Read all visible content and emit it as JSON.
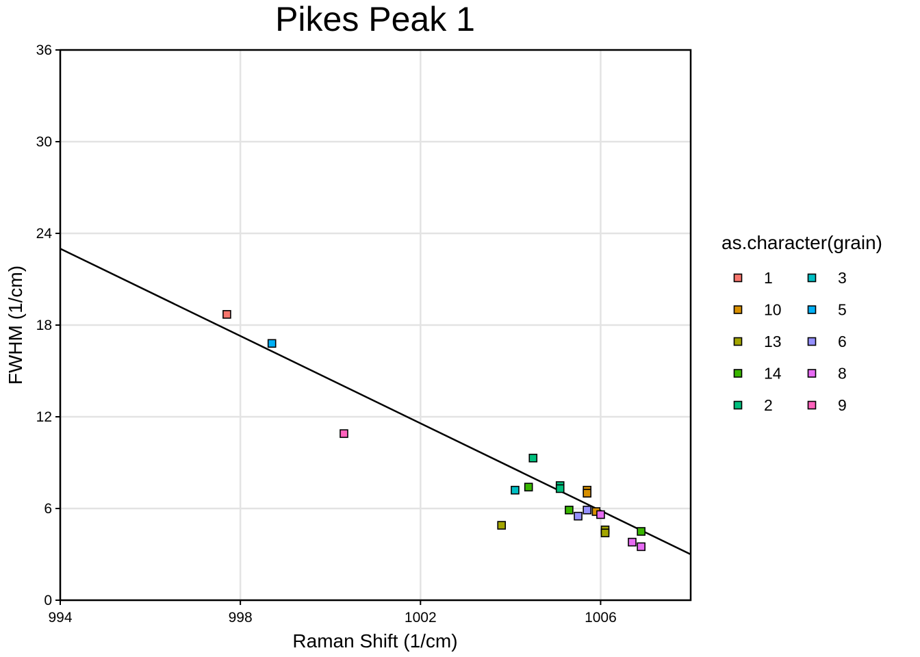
{
  "chart_data": {
    "type": "scatter",
    "title": "Pikes Peak 1",
    "xlabel": "Raman Shift (1/cm)",
    "ylabel": "FWHM (1/cm)",
    "xlim": [
      994,
      1008
    ],
    "ylim": [
      0,
      36
    ],
    "xticks": [
      994,
      998,
      1002,
      1006
    ],
    "yticks": [
      0,
      6,
      12,
      18,
      24,
      30,
      36
    ],
    "grid": true,
    "legend_title": "as.character(grain)",
    "legend_position": "right",
    "series": [
      {
        "name": "1",
        "color": "#F8766D",
        "points": [
          [
            997.7,
            18.7
          ]
        ]
      },
      {
        "name": "10",
        "color": "#D89000",
        "points": [
          [
            1005.7,
            7.2
          ],
          [
            1005.7,
            7.0
          ],
          [
            1005.9,
            5.8
          ]
        ]
      },
      {
        "name": "13",
        "color": "#A3A500",
        "points": [
          [
            1003.8,
            4.9
          ],
          [
            1006.1,
            4.6
          ],
          [
            1006.1,
            4.4
          ]
        ]
      },
      {
        "name": "14",
        "color": "#39B600",
        "points": [
          [
            1004.4,
            7.4
          ],
          [
            1005.3,
            5.9
          ],
          [
            1006.9,
            4.5
          ]
        ]
      },
      {
        "name": "2",
        "color": "#00BF7D",
        "points": [
          [
            1004.5,
            9.3
          ],
          [
            1005.1,
            7.5
          ],
          [
            1005.1,
            7.3
          ]
        ]
      },
      {
        "name": "3",
        "color": "#00BFC4",
        "points": [
          [
            1004.1,
            7.2
          ]
        ]
      },
      {
        "name": "5",
        "color": "#00B0F6",
        "points": [
          [
            998.7,
            16.8
          ]
        ]
      },
      {
        "name": "6",
        "color": "#9590FF",
        "points": [
          [
            1005.5,
            5.5
          ],
          [
            1005.7,
            5.9
          ]
        ]
      },
      {
        "name": "8",
        "color": "#E76BF3",
        "points": [
          [
            1006.0,
            5.6
          ],
          [
            1006.7,
            3.8
          ],
          [
            1006.9,
            3.5
          ]
        ]
      },
      {
        "name": "9",
        "color": "#FF62BC",
        "points": [
          [
            1000.3,
            10.9
          ]
        ]
      }
    ],
    "fit_line": {
      "x": [
        994,
        1008
      ],
      "y": [
        23.0,
        3.0
      ]
    }
  }
}
